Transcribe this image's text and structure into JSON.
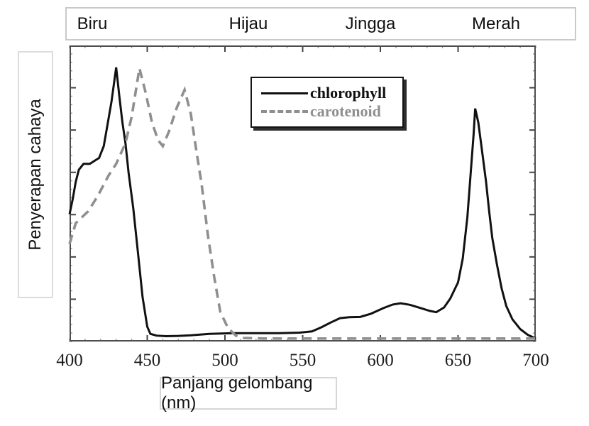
{
  "chart_data": {
    "type": "line",
    "title": "",
    "xlabel": "Panjang gelombang (nm)",
    "ylabel": "Penyerapan cahaya",
    "x_range": [
      400,
      700
    ],
    "x_ticks": [
      400,
      450,
      500,
      550,
      600,
      650,
      700
    ],
    "x_minor_step": 10,
    "y_divisions": 7,
    "ylim": [
      0,
      100
    ],
    "y_axis_numeric_labels": false,
    "grid": false,
    "legend_position": "upper-center",
    "color_bands": [
      "Biru",
      "Hijau",
      "Jingga",
      "Merah"
    ],
    "series": [
      {
        "name": "chlorophyll",
        "line": "solid",
        "color": "#111111",
        "points": [
          [
            400,
            43
          ],
          [
            402,
            48
          ],
          [
            404,
            54
          ],
          [
            406,
            58
          ],
          [
            409,
            60
          ],
          [
            413,
            60
          ],
          [
            416,
            61
          ],
          [
            419,
            62
          ],
          [
            422,
            66
          ],
          [
            424,
            72
          ],
          [
            427,
            81
          ],
          [
            430,
            92.6
          ],
          [
            432,
            83
          ],
          [
            434,
            74
          ],
          [
            436,
            67
          ],
          [
            438,
            57
          ],
          [
            441,
            45
          ],
          [
            444,
            30
          ],
          [
            447,
            15
          ],
          [
            450,
            5
          ],
          [
            452,
            2.6
          ],
          [
            456,
            2
          ],
          [
            462,
            1.8
          ],
          [
            470,
            1.9
          ],
          [
            478,
            2.1
          ],
          [
            490,
            2.6
          ],
          [
            505,
            2.8
          ],
          [
            520,
            2.8
          ],
          [
            535,
            2.8
          ],
          [
            548,
            3
          ],
          [
            556,
            3.4
          ],
          [
            562,
            4.8
          ],
          [
            568,
            6.4
          ],
          [
            574,
            7.9
          ],
          [
            580,
            8.2
          ],
          [
            587,
            8.3
          ],
          [
            594,
            9.4
          ],
          [
            602,
            11.3
          ],
          [
            608,
            12.5
          ],
          [
            613,
            12.9
          ],
          [
            619,
            12.4
          ],
          [
            626,
            11.3
          ],
          [
            632,
            10.3
          ],
          [
            636,
            9.9
          ],
          [
            641,
            11.5
          ],
          [
            645,
            14.5
          ],
          [
            650,
            20
          ],
          [
            653,
            28
          ],
          [
            656,
            42
          ],
          [
            658,
            56
          ],
          [
            660,
            70
          ],
          [
            661,
            78.7
          ],
          [
            663,
            74
          ],
          [
            665,
            66
          ],
          [
            668,
            54
          ],
          [
            670,
            44
          ],
          [
            672,
            35
          ],
          [
            675,
            26
          ],
          [
            678,
            18
          ],
          [
            681,
            12
          ],
          [
            685,
            7.5
          ],
          [
            690,
            4.2
          ],
          [
            695,
            2.2
          ],
          [
            700,
            1
          ]
        ]
      },
      {
        "name": "carotenoid",
        "line": "dashed",
        "color": "#8f8f8f",
        "points": [
          [
            400,
            33
          ],
          [
            404,
            40
          ],
          [
            412,
            44
          ],
          [
            418,
            49
          ],
          [
            425,
            56
          ],
          [
            430,
            60
          ],
          [
            436,
            67
          ],
          [
            440,
            76
          ],
          [
            445,
            92.3
          ],
          [
            449,
            84
          ],
          [
            453,
            74
          ],
          [
            457,
            68
          ],
          [
            460,
            66
          ],
          [
            464,
            71
          ],
          [
            469,
            79
          ],
          [
            474,
            85
          ],
          [
            478,
            77
          ],
          [
            482,
            63
          ],
          [
            485,
            53
          ],
          [
            489,
            36
          ],
          [
            493,
            22
          ],
          [
            497,
            10
          ],
          [
            502,
            4.5
          ],
          [
            507,
            2
          ],
          [
            512,
            1.2
          ],
          [
            525,
            1
          ],
          [
            550,
            1
          ],
          [
            575,
            1
          ],
          [
            600,
            1
          ],
          [
            625,
            1
          ],
          [
            650,
            1
          ],
          [
            675,
            1
          ],
          [
            700,
            1
          ]
        ]
      }
    ]
  }
}
